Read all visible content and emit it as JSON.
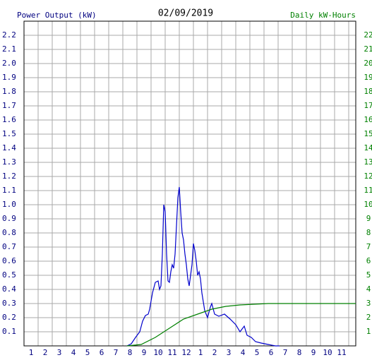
{
  "chart_data": {
    "type": "line",
    "title": "02/09/2019",
    "y_label": "Power Output (kW)",
    "y2_label": "Daily kW-Hours",
    "xlim": [
      0.5,
      24
    ],
    "xticks": [
      {
        "value": 1,
        "label": "1"
      },
      {
        "value": 2,
        "label": "2"
      },
      {
        "value": 3,
        "label": "3"
      },
      {
        "value": 4,
        "label": "4"
      },
      {
        "value": 5,
        "label": "5"
      },
      {
        "value": 6,
        "label": "6"
      },
      {
        "value": 7,
        "label": "7"
      },
      {
        "value": 8,
        "label": "8"
      },
      {
        "value": 9,
        "label": "9"
      },
      {
        "value": 10,
        "label": "10"
      },
      {
        "value": 11,
        "label": "11"
      },
      {
        "value": 12,
        "label": "12"
      },
      {
        "value": 13,
        "label": "1"
      },
      {
        "value": 14,
        "label": "2"
      },
      {
        "value": 15,
        "label": "3"
      },
      {
        "value": 16,
        "label": "4"
      },
      {
        "value": 17,
        "label": "5"
      },
      {
        "value": 18,
        "label": "6"
      },
      {
        "value": 19,
        "label": "7"
      },
      {
        "value": 20,
        "label": "8"
      },
      {
        "value": 21,
        "label": "9"
      },
      {
        "value": 22,
        "label": "10"
      },
      {
        "value": 23,
        "label": "11"
      }
    ],
    "ylim": [
      0,
      2.3
    ],
    "yticks": [
      0.1,
      0.2,
      0.3,
      0.4,
      0.5,
      0.6,
      0.7,
      0.8,
      0.9,
      {
        "value": 1,
        "label": "1.0"
      },
      1.1,
      1.2,
      1.3,
      1.4,
      1.5,
      1.6,
      1.7,
      1.8,
      1.9,
      {
        "value": 2,
        "label": "2.0"
      },
      2.1,
      2.2
    ],
    "y2lim": [
      0,
      23
    ],
    "y2ticks": [
      1,
      2,
      3,
      4,
      5,
      6,
      7,
      8,
      9,
      10,
      11,
      12,
      13,
      14,
      15,
      16,
      17,
      18,
      19,
      20,
      21,
      22
    ],
    "grid": true,
    "y_color": "#000080",
    "y2_color": "#008000",
    "grid_color": "#a8a8a8",
    "series": [
      {
        "color": "#0000cc",
        "axis": "y",
        "x": [
          7.8,
          8.1,
          8.4,
          8.7,
          8.9,
          9.1,
          9.3,
          9.4,
          9.6,
          9.8,
          10.0,
          10.1,
          10.2,
          10.3,
          10.4,
          10.5,
          10.6,
          10.7,
          10.8,
          10.9,
          11.0,
          11.1,
          11.2,
          11.3,
          11.4,
          11.5,
          11.6,
          11.7,
          11.8,
          11.9,
          12.0,
          12.1,
          12.2,
          12.3,
          12.4,
          12.5,
          12.6,
          12.7,
          12.8,
          12.9,
          13.0,
          13.1,
          13.3,
          13.5,
          13.7,
          13.8,
          14.0,
          14.3,
          14.7,
          15.1,
          15.5,
          15.8,
          16.1,
          16.3,
          16.6,
          16.9,
          17.3,
          17.8,
          18.3,
          18.6
        ],
        "values": [
          0,
          0.015,
          0.06,
          0.1,
          0.175,
          0.215,
          0.225,
          0.26,
          0.375,
          0.45,
          0.46,
          0.4,
          0.425,
          0.65,
          1.0,
          0.95,
          0.65,
          0.46,
          0.45,
          0.525,
          0.575,
          0.55,
          0.65,
          0.85,
          1.05,
          1.125,
          0.95,
          0.8,
          0.75,
          0.65,
          0.575,
          0.475,
          0.425,
          0.5,
          0.575,
          0.725,
          0.675,
          0.6,
          0.5,
          0.525,
          0.475,
          0.375,
          0.25,
          0.2,
          0.275,
          0.3,
          0.225,
          0.21,
          0.225,
          0.19,
          0.15,
          0.1,
          0.14,
          0.075,
          0.06,
          0.03,
          0.02,
          0.01,
          0,
          0
        ]
      },
      {
        "color": "#008000",
        "axis": "y2",
        "x": [
          7.8,
          8.8,
          9.8,
          10.8,
          11.8,
          12.8,
          13.8,
          14.8,
          15.8,
          16.8,
          17.8,
          24.0
        ],
        "values": [
          0,
          0.1,
          0.6,
          1.25,
          1.9,
          2.25,
          2.6,
          2.8,
          2.9,
          2.95,
          3.0,
          3.0
        ]
      }
    ]
  }
}
